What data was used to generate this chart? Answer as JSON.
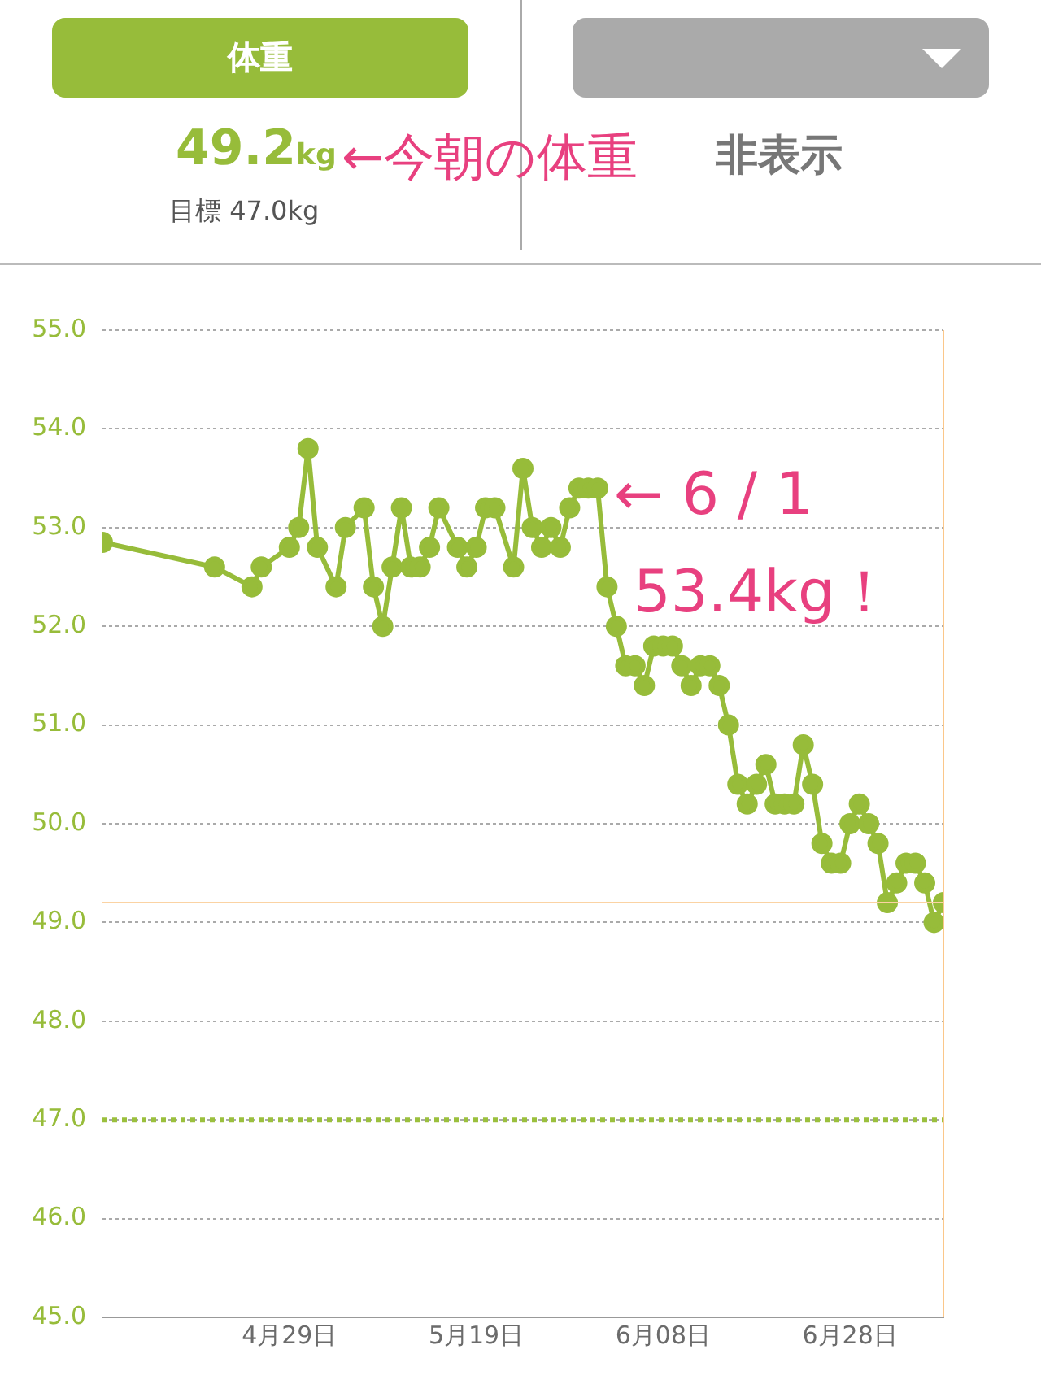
{
  "chart_data": {
    "type": "line",
    "annotations": [
      "体重",
      "49.2",
      "kg",
      "←今朝の体重",
      "目標 47.0kg",
      "非表示",
      {
        "text": "← 6 / 1\n53.4kg！",
        "x": "--06-01",
        "y": 53.4
      }
    ],
    "x": [
      "--04-09",
      "--04-21",
      "--04-25",
      "--04-26",
      "--04-29",
      "--04-30",
      "--05-01",
      "--05-02",
      "--05-04",
      "--05-05",
      "--05-07",
      "--05-08",
      "--05-09",
      "--05-10",
      "--05-11",
      "--05-12",
      "--05-13",
      "--05-14",
      "--05-15",
      "--05-17",
      "--05-18",
      "--05-19",
      "--05-20",
      "--05-21",
      "--05-23",
      "--05-24",
      "--05-25",
      "--05-26",
      "--05-27",
      "--05-28",
      "--05-29",
      "--05-30",
      "--05-31",
      "--06-01",
      "--06-02",
      "--06-03",
      "--06-04",
      "--06-05",
      "--06-06",
      "--06-07",
      "--06-08",
      "--06-09",
      "--06-10",
      "--06-11",
      "--06-12",
      "--06-13",
      "--06-14",
      "--06-15",
      "--06-16",
      "--06-17",
      "--06-18",
      "--06-19",
      "--06-20",
      "--06-21",
      "--06-22",
      "--06-23",
      "--06-24",
      "--06-25",
      "--06-26",
      "--06-27",
      "--06-28",
      "--06-29",
      "--06-30",
      "--07-01",
      "--07-02",
      "--07-03",
      "--07-04",
      "--07-05",
      "--07-06",
      "--07-07",
      "--07-08"
    ],
    "series": [
      {
        "color": "#97bc3a",
        "values": [
          52.85,
          52.6,
          52.4,
          52.6,
          52.8,
          53.0,
          53.8,
          52.8,
          52.4,
          53.0,
          53.2,
          52.4,
          52.0,
          52.6,
          53.2,
          52.6,
          52.6,
          52.8,
          53.2,
          52.8,
          52.6,
          52.8,
          53.2,
          53.2,
          52.6,
          53.6,
          53.0,
          52.8,
          53.0,
          52.8,
          53.2,
          53.4,
          53.4,
          53.4,
          52.4,
          52.0,
          51.6,
          51.6,
          51.4,
          51.8,
          51.8,
          51.8,
          51.6,
          51.4,
          51.6,
          51.6,
          51.4,
          51.0,
          50.4,
          50.2,
          50.4,
          50.6,
          50.2,
          50.2,
          50.2,
          50.8,
          50.4,
          49.8,
          49.6,
          49.6,
          50.0,
          50.2,
          50.0,
          49.8,
          49.2,
          49.4,
          49.6,
          49.6,
          49.4,
          49.0,
          49.2
        ]
      }
    ],
    "xlim": [
      "--04-09",
      "--07-08"
    ],
    "xticks": [
      {
        "value": "--04-29",
        "label": "4月29日"
      },
      {
        "value": "--05-19",
        "label": "5月19日"
      },
      {
        "value": "--06-08",
        "label": "6月08日"
      },
      {
        "value": "--06-28",
        "label": "6月28日"
      }
    ],
    "ylim": [
      45,
      55
    ],
    "yticks": [
      {
        "value": 45,
        "label": "45.0"
      },
      {
        "value": 46,
        "label": "46.0"
      },
      {
        "value": 47,
        "label": "47.0"
      },
      {
        "value": 48,
        "label": "48.0"
      },
      {
        "value": 49,
        "label": "49.0"
      },
      {
        "value": 50,
        "label": "50.0"
      },
      {
        "value": 51,
        "label": "51.0"
      },
      {
        "value": 52,
        "label": "52.0"
      },
      {
        "value": 53,
        "label": "53.0"
      },
      {
        "value": 54,
        "label": "54.0"
      },
      {
        "value": 55,
        "label": "55.0"
      }
    ],
    "ref_lines": [
      {
        "axis": "y",
        "value": 47,
        "color": "#9bc03d",
        "line_style": "dotted"
      },
      {
        "axis": "y",
        "value": 49.2,
        "color": "#fbd3a3",
        "line_style": "solid"
      },
      {
        "axis": "x",
        "value": "--07-08",
        "color": "#fbc78a",
        "line_style": "solid"
      }
    ],
    "grid": "y",
    "marker": "circle",
    "line_style": "solid",
    "legend": false
  }
}
